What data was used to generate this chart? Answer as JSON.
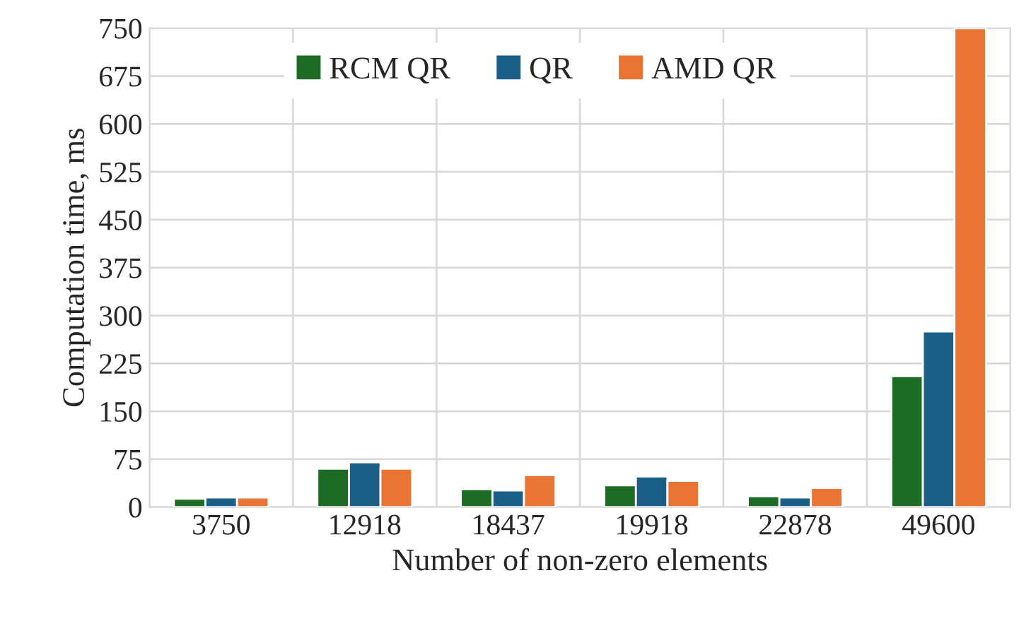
{
  "chart_data": {
    "type": "bar",
    "xlabel": "Number of non-zero elements",
    "ylabel": "Computation time, ms",
    "categories": [
      "3750",
      "12918",
      "18437",
      "19918",
      "22878",
      "49600"
    ],
    "series": [
      {
        "name": "RCM QR",
        "color": "#1e6b26",
        "values": [
          13,
          60,
          28,
          34,
          17,
          205
        ]
      },
      {
        "name": "QR",
        "color": "#1b5e86",
        "values": [
          15,
          70,
          26,
          48,
          15,
          275
        ]
      },
      {
        "name": "AMD QR",
        "color": "#e97433",
        "values": [
          15,
          60,
          50,
          41,
          30,
          750
        ]
      }
    ],
    "ylim": [
      0,
      750
    ],
    "yticks": [
      0,
      75,
      150,
      225,
      300,
      375,
      450,
      525,
      600,
      675,
      750
    ],
    "grid": true,
    "legend": "top"
  }
}
